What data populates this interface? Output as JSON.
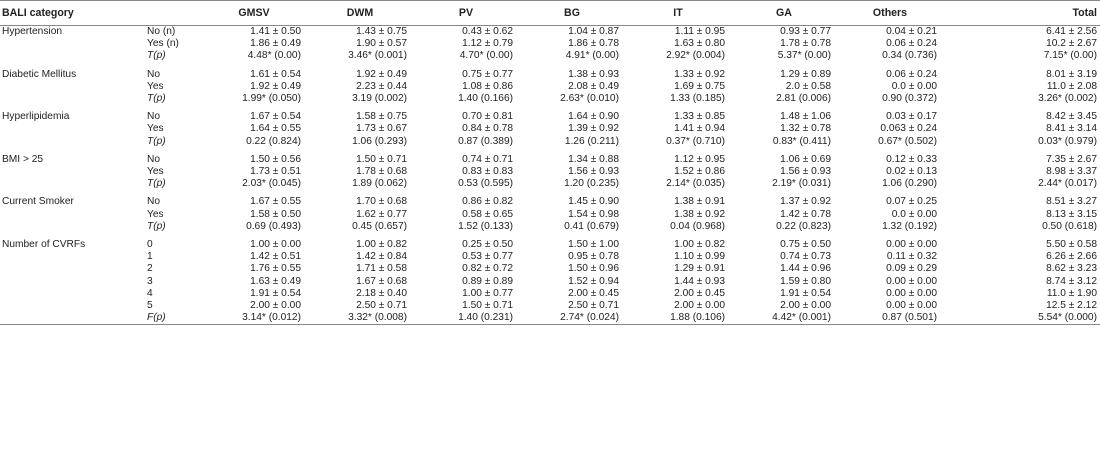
{
  "headers": [
    "BALI category",
    "",
    "GMSV",
    "DWM",
    "PV",
    "BG",
    "IT",
    "GA",
    "Others",
    "Total"
  ],
  "groups": [
    {
      "category": "Hypertension",
      "rows": [
        {
          "sub": "No (n)",
          "italic": false,
          "values": [
            "1.41 ± 0.50",
            "1.43 ± 0.75",
            "0.43 ± 0.62",
            "1.04 ± 0.87",
            "1.11 ± 0.95",
            "0.93 ± 0.77",
            "0.04 ± 0.21",
            "6.41 ± 2.56"
          ]
        },
        {
          "sub": "Yes (n)",
          "italic": false,
          "values": [
            "1.86 ± 0.49",
            "1.90 ± 0.57",
            "1.12 ± 0.79",
            "1.86 ± 0.78",
            "1.63 ± 0.80",
            "1.78 ± 0.78",
            "0.06 ± 0.24",
            "10.2 ± 2.67"
          ]
        },
        {
          "sub": "T(p)",
          "italic": true,
          "values": [
            "4.48* (0.00)",
            "3.46* (0.001)",
            "4.70* (0.00)",
            "4.91* (0.00)",
            "2.92* (0.004)",
            "5.37* (0.00)",
            "0.34 (0.736)",
            "7.15* (0.00)"
          ]
        }
      ]
    },
    {
      "category": "Diabetic Mellitus",
      "rows": [
        {
          "sub": "No",
          "italic": false,
          "values": [
            "1.61 ± 0.54",
            "1.92 ± 0.49",
            "0.75 ± 0.77",
            "1.38 ± 0.93",
            "1.33 ± 0.92",
            "1.29 ± 0.89",
            "0.06 ± 0.24",
            "8.01 ± 3.19"
          ]
        },
        {
          "sub": "Yes",
          "italic": false,
          "values": [
            "1.92 ± 0.49",
            "2.23 ± 0.44",
            "1.08 ± 0.86",
            "2.08 ± 0.49",
            "1.69 ± 0.75",
            "2.0 ± 0.58",
            "0.0 ± 0.00",
            "11.0 ± 2.08"
          ]
        },
        {
          "sub": "T(p)",
          "italic": true,
          "values": [
            "1.99* (0.050)",
            "3.19 (0.002)",
            "1.40 (0.166)",
            "2.63* (0.010)",
            "1.33 (0.185)",
            "2.81 (0.006)",
            "0.90 (0.372)",
            "3.26* (0.002)"
          ]
        }
      ]
    },
    {
      "category": "Hyperlipidemia",
      "rows": [
        {
          "sub": "No",
          "italic": false,
          "values": [
            "1.67 ± 0.54",
            "1.58 ± 0.75",
            "0.70 ± 0.81",
            "1.64 ± 0.90",
            "1.33 ± 0.85",
            "1.48 ± 1.06",
            "0.03 ± 0.17",
            "8.42 ± 3.45"
          ]
        },
        {
          "sub": "Yes",
          "italic": false,
          "values": [
            "1.64 ± 0.55",
            "1.73 ± 0.67",
            "0.84 ± 0.78",
            "1.39 ± 0.92",
            "1.41 ± 0.94",
            "1.32 ± 0.78",
            "0.063 ± 0.24",
            "8.41 ± 3.14"
          ]
        },
        {
          "sub": "T(p)",
          "italic": true,
          "values": [
            "0.22 (0.824)",
            "1.06 (0.293)",
            "0.87 (0.389)",
            "1.26 (0.211)",
            "0.37* (0.710)",
            "0.83* (0.411)",
            "0.67* (0.502)",
            "0.03* (0.979)"
          ]
        }
      ]
    },
    {
      "category": "BMI > 25",
      "rows": [
        {
          "sub": "No",
          "italic": false,
          "values": [
            "1.50 ± 0.56",
            "1.50 ± 0.71",
            "0.74 ± 0.71",
            "1.34 ± 0.88",
            "1.12 ± 0.95",
            "1.06 ± 0.69",
            "0.12 ± 0.33",
            "7.35 ± 2.67"
          ]
        },
        {
          "sub": "Yes",
          "italic": false,
          "values": [
            "1.73 ± 0.51",
            "1.78 ± 0.68",
            "0.83 ± 0.83",
            "1.56 ± 0.93",
            "1.52 ± 0.86",
            "1.56 ± 0.93",
            "0.02 ± 0.13",
            "8.98 ± 3.37"
          ]
        },
        {
          "sub": "T(p)",
          "italic": true,
          "values": [
            "2.03* (0.045)",
            "1.89 (0.062)",
            "0.53 (0.595)",
            "1.20 (0.235)",
            "2.14* (0.035)",
            "2.19* (0.031)",
            "1.06 (0.290)",
            "2.44* (0.017)"
          ]
        }
      ]
    },
    {
      "category": "Current Smoker",
      "rows": [
        {
          "sub": "No",
          "italic": false,
          "values": [
            "1.67 ± 0.55",
            "1.70 ± 0.68",
            "0.86 ± 0.82",
            "1.45 ± 0.90",
            "1.38 ± 0.91",
            "1.37 ± 0.92",
            "0.07 ± 0.25",
            "8.51 ± 3.27"
          ]
        },
        {
          "sub": "Yes",
          "italic": false,
          "values": [
            "1.58 ± 0.50",
            "1.62 ± 0.77",
            "0.58 ± 0.65",
            "1.54 ± 0.98",
            "1.38 ± 0.92",
            "1.42 ± 0.78",
            "0.0 ± 0.00",
            "8.13 ± 3.15"
          ]
        },
        {
          "sub": "T(p)",
          "italic": true,
          "values": [
            "0.69 (0.493)",
            "0.45 (0.657)",
            "1.52 (0.133)",
            "0.41 (0.679)",
            "0.04 (0.968)",
            "0.22 (0.823)",
            "1.32 (0.192)",
            "0.50 (0.618)"
          ]
        }
      ]
    },
    {
      "category": "Number of CVRFs",
      "rows": [
        {
          "sub": "0",
          "italic": false,
          "values": [
            "1.00 ± 0.00",
            "1.00 ± 0.82",
            "0.25 ± 0.50",
            "1.50 ± 1.00",
            "1.00 ± 0.82",
            "0.75 ± 0.50",
            "0.00 ± 0.00",
            "5.50 ± 0.58"
          ]
        },
        {
          "sub": "1",
          "italic": false,
          "values": [
            "1.42 ± 0.51",
            "1.42 ± 0.84",
            "0.53 ± 0.77",
            "0.95 ± 0.78",
            "1.10 ± 0.99",
            "0.74 ± 0.73",
            "0.11 ± 0.32",
            "6.26 ± 2.66"
          ]
        },
        {
          "sub": "2",
          "italic": false,
          "values": [
            "1.76 ± 0.55",
            "1.71 ± 0.58",
            "0.82 ± 0.72",
            "1.50 ± 0.96",
            "1.29 ± 0.91",
            "1.44 ± 0.96",
            "0.09 ± 0.29",
            "8.62 ± 3.23"
          ]
        },
        {
          "sub": "3",
          "italic": false,
          "values": [
            "1.63 ± 0.49",
            "1.67 ± 0.68",
            "0.89 ± 0.89",
            "1.52 ± 0.94",
            "1.44 ± 0.93",
            "1.59 ± 0.80",
            "0.00 ± 0.00",
            "8.74 ± 3.12"
          ]
        },
        {
          "sub": "4",
          "italic": false,
          "values": [
            "1.91 ± 0.54",
            "2.18 ± 0.40",
            "1.00 ± 0.77",
            "2.00 ± 0.45",
            "2.00 ± 0.45",
            "1.91 ± 0.54",
            "0.00 ± 0.00",
            "11.0 ± 1.90"
          ]
        },
        {
          "sub": "5",
          "italic": false,
          "values": [
            "2.00 ± 0.00",
            "2.50 ± 0.71",
            "1.50 ± 0.71",
            "2.50 ± 0.71",
            "2.00 ± 0.00",
            "2.00 ± 0.00",
            "0.00 ± 0.00",
            "12.5 ± 2.12"
          ]
        },
        {
          "sub": "F(p)",
          "italic": true,
          "values": [
            "3.14* (0.012)",
            "3.32* (0.008)",
            "1.40 (0.231)",
            "2.74* (0.024)",
            "1.88 (0.106)",
            "4.42* (0.001)",
            "0.87 (0.501)",
            "5.54* (0.000)"
          ]
        }
      ]
    }
  ]
}
